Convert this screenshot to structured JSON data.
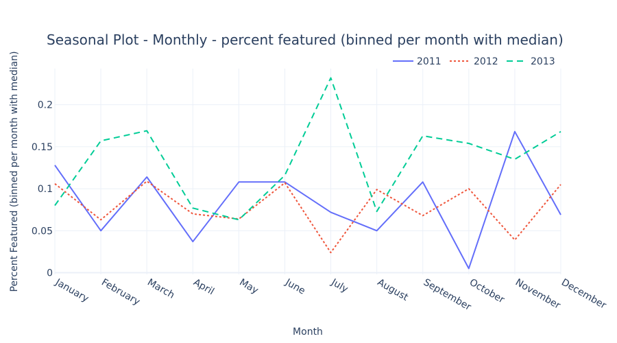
{
  "chart_data": {
    "type": "line",
    "title": "Seasonal Plot - Monthly - percent featured (binned per month with median)",
    "xlabel": "Month",
    "ylabel": "Percent Featured (binned per month with median)",
    "categories": [
      "January",
      "February",
      "March",
      "April",
      "May",
      "June",
      "July",
      "August",
      "September",
      "October",
      "November",
      "December"
    ],
    "ylim": [
      -0.002,
      0.243
    ],
    "yticks": [
      0,
      0.05,
      0.1,
      0.15,
      0.2
    ],
    "ytick_labels": [
      "0",
      "0.05",
      "0.1",
      "0.15",
      "0.2"
    ],
    "grid": true,
    "legend_position": "top-right",
    "series": [
      {
        "name": "2011",
        "color": "#636efa",
        "dash": "solid",
        "values": [
          0.128,
          0.05,
          0.114,
          0.037,
          0.108,
          0.108,
          0.072,
          0.05,
          0.108,
          0.005,
          0.168,
          0.069
        ]
      },
      {
        "name": "2012",
        "color": "#ef553b",
        "dash": "dot",
        "values": [
          0.106,
          0.063,
          0.109,
          0.07,
          0.064,
          0.107,
          0.024,
          0.099,
          0.068,
          0.1,
          0.039,
          0.105
        ]
      },
      {
        "name": "2013",
        "color": "#00cc96",
        "dash": "dash",
        "values": [
          0.08,
          0.157,
          0.169,
          0.077,
          0.063,
          0.116,
          0.232,
          0.073,
          0.163,
          0.154,
          0.135,
          0.168
        ]
      }
    ]
  }
}
